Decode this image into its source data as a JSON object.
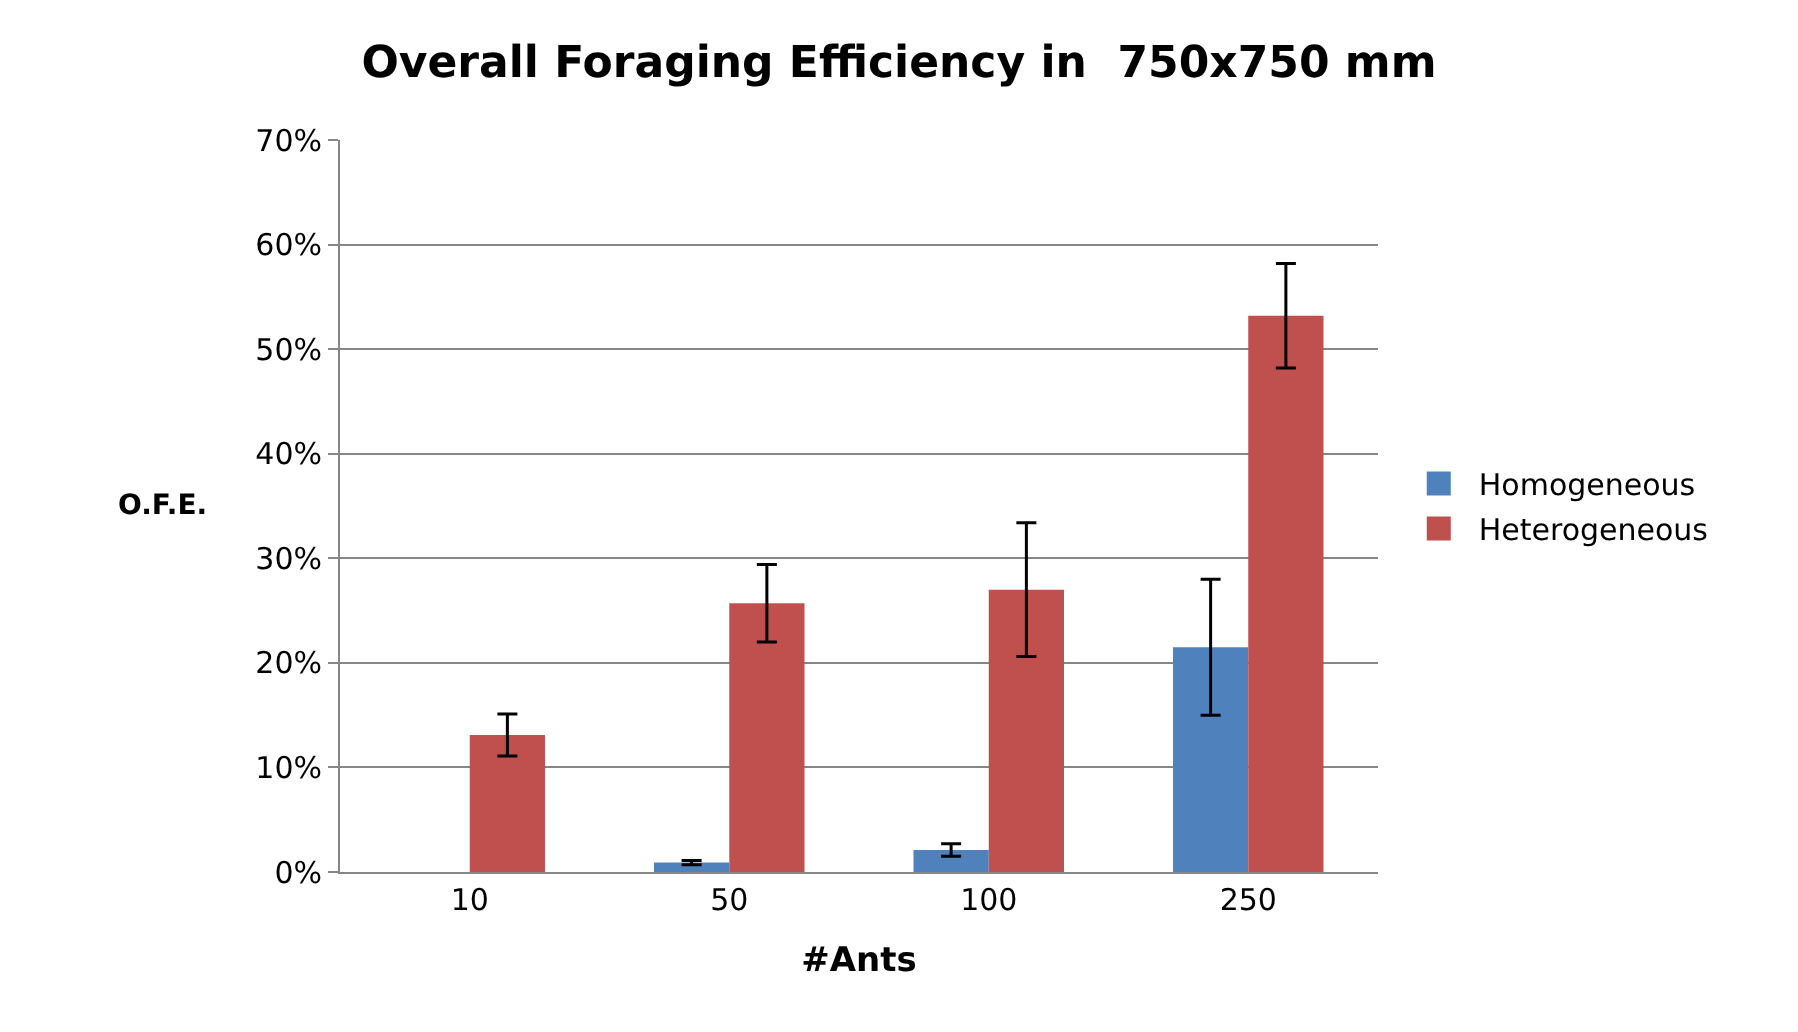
{
  "chart_data": {
    "type": "bar",
    "title": "Overall Foraging Efficiency in  750x750 mm",
    "xlabel": "#Ants",
    "ylabel": "O.F.E.",
    "categories": [
      "10",
      "50",
      "100",
      "250"
    ],
    "series": [
      {
        "name": "Homogeneous",
        "color": "#4f81bd",
        "values": [
          null,
          0.9,
          2.1,
          21.5
        ],
        "errors": [
          null,
          0.2,
          0.6,
          6.5
        ]
      },
      {
        "name": "Heterogeneous",
        "color": "#c0504d",
        "values": [
          13.1,
          25.7,
          27.0,
          53.2
        ],
        "errors": [
          2.0,
          3.7,
          6.4,
          5.0
        ]
      }
    ],
    "ylim": [
      0,
      70
    ],
    "yticks": [
      {
        "value": 0,
        "label": "0%"
      },
      {
        "value": 10,
        "label": "10%"
      },
      {
        "value": 20,
        "label": "20%"
      },
      {
        "value": 30,
        "label": "30%"
      },
      {
        "value": 40,
        "label": "40%"
      },
      {
        "value": 50,
        "label": "50%"
      },
      {
        "value": 60,
        "label": "60%"
      },
      {
        "value": 70,
        "label": "70%"
      }
    ],
    "grid": "y",
    "legend": "right"
  }
}
